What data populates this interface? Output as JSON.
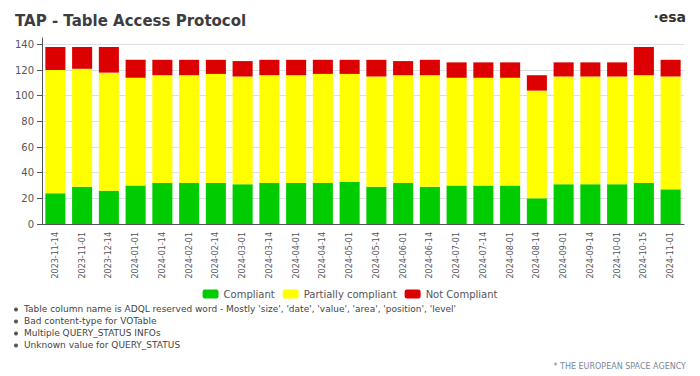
{
  "chart_data": {
    "type": "bar",
    "title": "TAP - Table Access Protocol",
    "categories": [
      "2023-11-14",
      "2023-11-01",
      "2023-12-14",
      "2024-01-01",
      "2024-01-14",
      "2024-02-01",
      "2024-02-14",
      "2024-03-01",
      "2024-03-14",
      "2024-04-01",
      "2024-04-14",
      "2024-05-01",
      "2024-05-14",
      "2024-06-01",
      "2024-06-14",
      "2024-07-01",
      "2024-07-14",
      "2024-08-01",
      "2024-08-14",
      "2024-09-01",
      "2024-09-14",
      "2024-10-01",
      "2024-10-15",
      "2024-11-01"
    ],
    "series": [
      {
        "name": "Compliant",
        "color": "#00cc00",
        "values": [
          24,
          29,
          26,
          30,
          32,
          32,
          32,
          31,
          32,
          32,
          32,
          33,
          29,
          32,
          29,
          30,
          30,
          30,
          20,
          31,
          31,
          31,
          32,
          27
        ]
      },
      {
        "name": "Partially compliant",
        "color": "#ffff00",
        "values": [
          96,
          92,
          92,
          84,
          84,
          84,
          85,
          84,
          84,
          84,
          85,
          84,
          86,
          84,
          87,
          84,
          84,
          84,
          84,
          84,
          84,
          84,
          84,
          88
        ]
      },
      {
        "name": "Not Compliant",
        "color": "#dd0000",
        "values": [
          18,
          17,
          20,
          14,
          12,
          12,
          11,
          12,
          12,
          12,
          11,
          11,
          13,
          11,
          12,
          12,
          12,
          12,
          12,
          11,
          11,
          11,
          22,
          13
        ]
      }
    ],
    "stacked": true,
    "ylim": [
      0,
      145
    ],
    "yticks": [
      0,
      20,
      40,
      60,
      80,
      100,
      120,
      140
    ],
    "grid": true,
    "legend": "bottom",
    "annotations": [
      "·esa",
      "Table column name is ADQL reserved word - Mostly 'size', 'date', 'value', 'area', 'position', 'level'",
      "Bad content-type for VOTable",
      "Multiple QUERY_STATUS INFOs",
      "Unknown value for QUERY_STATUS",
      "* THE EUROPEAN SPACE AGENCY"
    ]
  }
}
